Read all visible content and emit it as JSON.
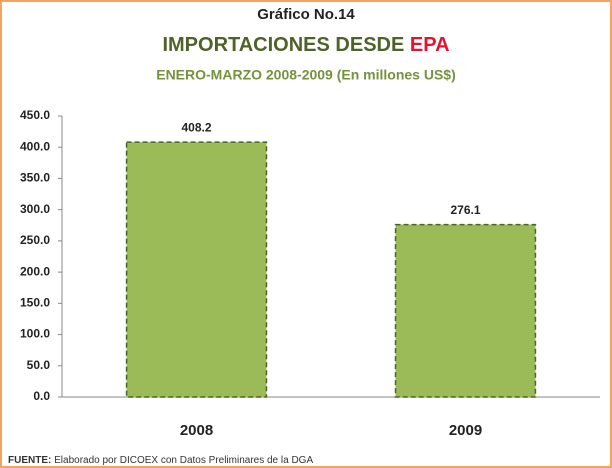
{
  "chart_data": {
    "type": "bar",
    "heading": "Gráfico No.14",
    "title": "IMPORTACIONES DESDE",
    "title_highlight": "EPA",
    "subtitle": "ENERO-MARZO 2008-2009 (En millones US$)",
    "categories": [
      "2008",
      "2009"
    ],
    "values": [
      408.2,
      276.1
    ],
    "color": "#9bbb59",
    "edge_color": "#4f6228",
    "ylim": [
      0,
      450
    ],
    "yticks": [
      {
        "value": 0,
        "label": "0.0"
      },
      {
        "value": 50,
        "label": "50.0"
      },
      {
        "value": 100,
        "label": "100.0"
      },
      {
        "value": 150,
        "label": "150.0"
      },
      {
        "value": 200,
        "label": "200.0"
      },
      {
        "value": 250,
        "label": "250.0"
      },
      {
        "value": 300,
        "label": "300.0"
      },
      {
        "value": 350,
        "label": "350.0"
      },
      {
        "value": 400,
        "label": "400.0"
      },
      {
        "value": 450,
        "label": "450.0"
      }
    ],
    "grid": false,
    "source_label": "FUENTE:",
    "source": "Elaborado por DICOEX con Datos Preliminares de la DGA"
  }
}
